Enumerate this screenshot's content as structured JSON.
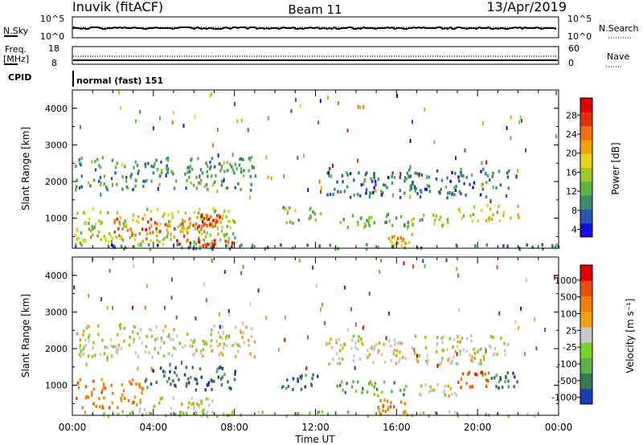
{
  "header": {
    "station": "Inuvik (fitACF)",
    "beam": "Beam 11",
    "date": "13/Apr/2019"
  },
  "strip_noise": {
    "left_label": "N.Sky",
    "right_label": "N.Search",
    "left_ticks": [
      "10^5",
      "10^0"
    ],
    "right_ticks": [
      "10^5",
      "10^0"
    ]
  },
  "strip_freq": {
    "left_label_line1": "Freq.",
    "left_label_line2": "[MHz]",
    "right_label": "Nave",
    "left_ticks": [
      "18",
      "8"
    ],
    "right_ticks": [
      "60",
      "0"
    ]
  },
  "strip_cpid": {
    "label": "CPID",
    "mode_text": "normal (fast) 151"
  },
  "chart_data": [
    {
      "type": "heatmap",
      "panel": "power",
      "ylabel": "Slant Range [km]",
      "ylim": [
        180,
        4500
      ],
      "xlim_hours": [
        0,
        24
      ],
      "yticks": [
        "1000",
        "2000",
        "3000",
        "4000"
      ],
      "colorbar": {
        "label": "Power [dB]",
        "range": [
          0,
          30
        ],
        "ticks": [
          "28",
          "24",
          "20",
          "16",
          "12",
          "8",
          "4"
        ],
        "colors": [
          "#1010e0",
          "#2a55b0",
          "#3c8c6a",
          "#5ab445",
          "#a0c828",
          "#e8d21a",
          "#f5a00f",
          "#f07010",
          "#e03010",
          "#e00000"
        ]
      },
      "regions": [
        {
          "t": [
            0.1,
            8.0
          ],
          "r": [
            300,
            1300
          ],
          "level": 14
        },
        {
          "t": [
            2.0,
            7.5
          ],
          "r": [
            550,
            1050
          ],
          "level": 24
        },
        {
          "t": [
            5.0,
            8.1
          ],
          "r": [
            250,
            450
          ],
          "level": 27
        },
        {
          "t": [
            6.3,
            7.3
          ],
          "r": [
            800,
            1150
          ],
          "level": 26
        },
        {
          "t": [
            10.2,
            12.3
          ],
          "r": [
            900,
            1350
          ],
          "level": 12
        },
        {
          "t": [
            13.0,
            16.5
          ],
          "r": [
            750,
            1150
          ],
          "level": 10
        },
        {
          "t": [
            16.5,
            18.5
          ],
          "r": [
            800,
            1150
          ],
          "level": 12
        },
        {
          "t": [
            19.0,
            22.0
          ],
          "r": [
            950,
            1400
          ],
          "level": 16
        },
        {
          "t": [
            15.5,
            17.0
          ],
          "r": [
            250,
            600
          ],
          "level": 20
        },
        {
          "t": [
            0.1,
            9.0
          ],
          "r": [
            1800,
            2700
          ],
          "level": 8
        },
        {
          "t": [
            12.5,
            21.5
          ],
          "r": [
            1600,
            2400
          ],
          "level": 5
        },
        {
          "t": [
            0.1,
            24.0
          ],
          "r": [
            190,
            320
          ],
          "level": 6
        }
      ]
    },
    {
      "type": "heatmap",
      "panel": "velocity",
      "ylabel": "Slant Range [km]",
      "ylim": [
        180,
        4500
      ],
      "xlim_hours": [
        0,
        24
      ],
      "yticks": [
        "1000",
        "2000",
        "3000",
        "4000"
      ],
      "colorbar": {
        "label": "Velocity [m s⁻¹]",
        "ticks": [
          "1000",
          "500",
          "100",
          "25",
          "-25",
          "-100",
          "-500",
          "-1000"
        ],
        "colors": [
          "#1e3cb4",
          "#3c7850",
          "#5ab04a",
          "#78d22a",
          "#c8c8c8",
          "#f0a010",
          "#f08010",
          "#e85010",
          "#e00000"
        ]
      },
      "regions": [
        {
          "t": [
            0.1,
            3.5
          ],
          "r": [
            400,
            1200
          ],
          "class": 6
        },
        {
          "t": [
            3.5,
            8.0
          ],
          "r": [
            900,
            1550
          ],
          "class": 1
        },
        {
          "t": [
            3.0,
            7.0
          ],
          "r": [
            300,
            700
          ],
          "class": 4
        },
        {
          "t": [
            10.2,
            12.3
          ],
          "r": [
            900,
            1350
          ],
          "class": 1
        },
        {
          "t": [
            13.0,
            16.5
          ],
          "r": [
            750,
            1150
          ],
          "class": 2
        },
        {
          "t": [
            15.0,
            16.5
          ],
          "r": [
            250,
            650
          ],
          "class": 6
        },
        {
          "t": [
            17.0,
            19.0
          ],
          "r": [
            750,
            1150
          ],
          "class": 4
        },
        {
          "t": [
            19.0,
            20.5
          ],
          "r": [
            950,
            1400
          ],
          "class": 7
        },
        {
          "t": [
            20.5,
            22.0
          ],
          "r": [
            950,
            1400
          ],
          "class": 1
        },
        {
          "t": [
            0.1,
            9.0
          ],
          "r": [
            1800,
            2700
          ],
          "class": 4
        },
        {
          "t": [
            12.5,
            21.5
          ],
          "r": [
            1600,
            2400
          ],
          "class": 4
        },
        {
          "t": [
            0.1,
            24.0
          ],
          "r": [
            190,
            320
          ],
          "class": 3
        }
      ]
    }
  ],
  "time_axis": {
    "label": "Time UT",
    "ticks": [
      "00:00",
      "04:00",
      "08:00",
      "12:00",
      "16:00",
      "20:00",
      "00:00"
    ]
  }
}
